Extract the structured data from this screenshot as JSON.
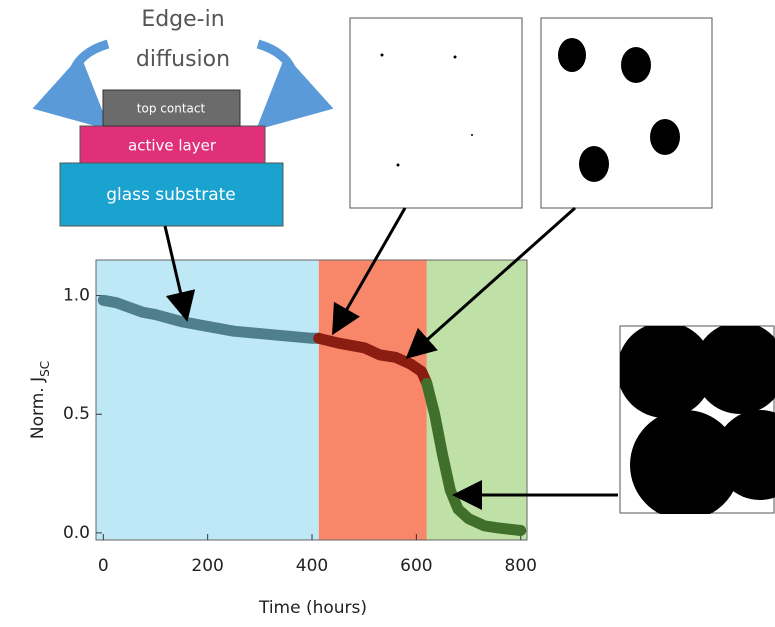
{
  "chart_data": {
    "type": "line",
    "xlabel": "Time (hours)",
    "ylabel": "Norm. J",
    "ylabel_sub": "SC",
    "xlim": [
      -14,
      812
    ],
    "ylim": [
      -0.03,
      1.15
    ],
    "xticks": [
      0,
      200,
      400,
      600,
      800
    ],
    "yticks": [
      {
        "value": 0,
        "label": "0.0"
      },
      0.5,
      {
        "value": 1,
        "label": "1.0"
      }
    ],
    "regions": [
      {
        "start": -14,
        "end": 413,
        "color": "#bfe8f7"
      },
      {
        "start": 413,
        "end": 620,
        "color": "#f8876a"
      },
      {
        "start": 620,
        "end": 812,
        "color": "#bfe0a6"
      }
    ],
    "series": [
      {
        "color": "#4f7f8c",
        "x": [
          0,
          25,
          50,
          75,
          100,
          150,
          200,
          250,
          300,
          350,
          400,
          413
        ],
        "values": [
          0.98,
          0.97,
          0.95,
          0.93,
          0.92,
          0.89,
          0.87,
          0.85,
          0.84,
          0.83,
          0.82,
          0.82
        ]
      },
      {
        "color": "#8a1d10",
        "x": [
          413,
          450,
          500,
          530,
          560,
          590,
          610,
          620
        ],
        "values": [
          0.82,
          0.8,
          0.78,
          0.75,
          0.74,
          0.71,
          0.68,
          0.63
        ]
      },
      {
        "color": "#3f6f2a",
        "x": [
          620,
          635,
          650,
          665,
          680,
          700,
          730,
          760,
          800
        ],
        "values": [
          0.63,
          0.5,
          0.33,
          0.18,
          0.1,
          0.06,
          0.03,
          0.02,
          0.01
        ]
      }
    ]
  },
  "diagram": {
    "edge_line1": "Edge-in",
    "edge_line2": "diffusion",
    "top_contact": "top contact",
    "active_layer": "active layer",
    "glass_substrate": "glass substrate"
  }
}
